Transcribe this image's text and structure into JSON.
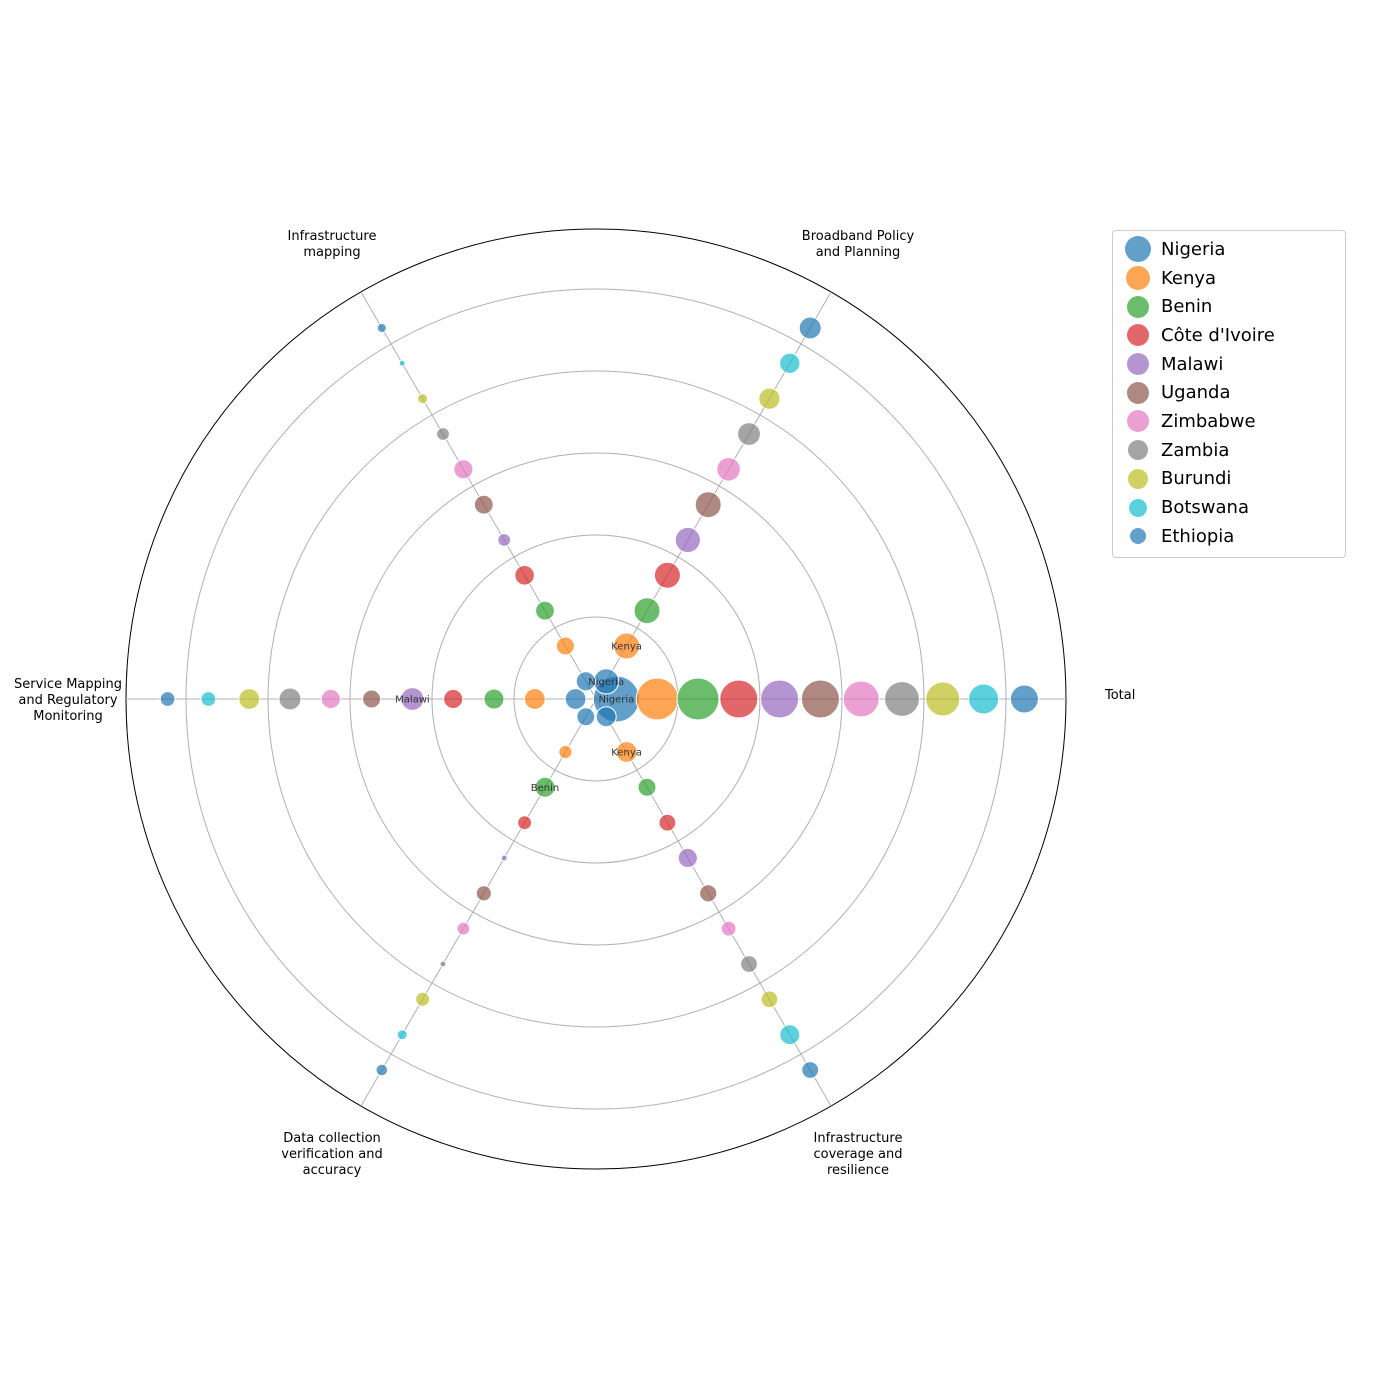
{
  "chart_data": {
    "type": "bubble-radial",
    "title": "",
    "axes": [
      {
        "key": "total",
        "label": [
          "Total"
        ]
      },
      {
        "key": "broadband",
        "label": [
          "Broadband Policy",
          "and Planning"
        ]
      },
      {
        "key": "infra_mapping",
        "label": [
          "Infrastructure",
          "mapping"
        ]
      },
      {
        "key": "service_mapping",
        "label": [
          "Service Mapping",
          "and Regulatory",
          "Monitoring"
        ]
      },
      {
        "key": "data_collection",
        "label": [
          "Data collection",
          "verification and",
          "accuracy"
        ]
      },
      {
        "key": "infra_coverage",
        "label": [
          "Infrastructure",
          "coverage and",
          "resilience"
        ]
      }
    ],
    "legend_position": "outside-right",
    "rings": 6,
    "countries": [
      {
        "name": "Nigeria",
        "color": "#1f77b4"
      },
      {
        "name": "Kenya",
        "color": "#ff7f0e"
      },
      {
        "name": "Benin",
        "color": "#2ca02c"
      },
      {
        "name": "Côte d'Ivoire",
        "color": "#d62728"
      },
      {
        "name": "Malawi",
        "color": "#9467bd"
      },
      {
        "name": "Uganda",
        "color": "#8c564b"
      },
      {
        "name": "Zimbabwe",
        "color": "#e377c2"
      },
      {
        "name": "Zambia",
        "color": "#7f7f7f"
      },
      {
        "name": "Burundi",
        "color": "#bcbd22"
      },
      {
        "name": "Botswana",
        "color": "#17becf"
      },
      {
        "name": "Ethiopia",
        "color": "#1f77b4"
      }
    ],
    "series": [
      {
        "axis": "total",
        "points": [
          {
            "country": "Nigeria",
            "rank": 1,
            "size": 1.0,
            "label": "Nigeria"
          },
          {
            "country": "Kenya",
            "rank": 2,
            "size": 0.9
          },
          {
            "country": "Benin",
            "rank": 3,
            "size": 0.9
          },
          {
            "country": "Côte d'Ivoire",
            "rank": 4,
            "size": 0.8
          },
          {
            "country": "Malawi",
            "rank": 5,
            "size": 0.8
          },
          {
            "country": "Uganda",
            "rank": 6,
            "size": 0.8
          },
          {
            "country": "Zimbabwe",
            "rank": 7,
            "size": 0.75
          },
          {
            "country": "Zambia",
            "rank": 8,
            "size": 0.72
          },
          {
            "country": "Burundi",
            "rank": 9,
            "size": 0.7
          },
          {
            "country": "Botswana",
            "rank": 10,
            "size": 0.6
          },
          {
            "country": "Ethiopia",
            "rank": 11,
            "size": 0.55
          }
        ]
      },
      {
        "axis": "broadband",
        "points": [
          {
            "country": "Nigeria",
            "rank": 1,
            "size": 0.48,
            "label": "Nigeria"
          },
          {
            "country": "Kenya",
            "rank": 2,
            "size": 0.5,
            "label": "Kenya"
          },
          {
            "country": "Benin",
            "rank": 3,
            "size": 0.5
          },
          {
            "country": "Côte d'Ivoire",
            "rank": 4,
            "size": 0.5
          },
          {
            "country": "Malawi",
            "rank": 5,
            "size": 0.48
          },
          {
            "country": "Uganda",
            "rank": 6,
            "size": 0.5
          },
          {
            "country": "Zimbabwe",
            "rank": 7,
            "size": 0.44
          },
          {
            "country": "Zambia",
            "rank": 8,
            "size": 0.42
          },
          {
            "country": "Burundi",
            "rank": 9,
            "size": 0.38
          },
          {
            "country": "Botswana",
            "rank": 10,
            "size": 0.36
          },
          {
            "country": "Ethiopia",
            "rank": 11,
            "size": 0.4
          }
        ]
      },
      {
        "axis": "infra_mapping",
        "points": [
          {
            "country": "Nigeria",
            "rank": 1,
            "size": 0.33
          },
          {
            "country": "Kenya",
            "rank": 2,
            "size": 0.3
          },
          {
            "country": "Benin",
            "rank": 3,
            "size": 0.32
          },
          {
            "country": "Côte d'Ivoire",
            "rank": 4,
            "size": 0.34
          },
          {
            "country": "Malawi",
            "rank": 5,
            "size": 0.17
          },
          {
            "country": "Uganda",
            "rank": 6,
            "size": 0.32
          },
          {
            "country": "Zimbabwe",
            "rank": 7,
            "size": 0.33
          },
          {
            "country": "Zambia",
            "rank": 8,
            "size": 0.17
          },
          {
            "country": "Burundi",
            "rank": 9,
            "size": 0.1
          },
          {
            "country": "Botswana",
            "rank": 10,
            "size": 0.0
          },
          {
            "country": "Ethiopia",
            "rank": 11,
            "size": 0.08
          }
        ]
      },
      {
        "axis": "service_mapping",
        "points": [
          {
            "country": "Nigeria",
            "rank": 1,
            "size": 0.37
          },
          {
            "country": "Kenya",
            "rank": 2,
            "size": 0.37
          },
          {
            "country": "Benin",
            "rank": 3,
            "size": 0.35
          },
          {
            "country": "Côte d'Ivoire",
            "rank": 4,
            "size": 0.33
          },
          {
            "country": "Malawi",
            "rank": 5,
            "size": 0.42,
            "label": "Malawi"
          },
          {
            "country": "Uganda",
            "rank": 6,
            "size": 0.3
          },
          {
            "country": "Zimbabwe",
            "rank": 7,
            "size": 0.33
          },
          {
            "country": "Zambia",
            "rank": 8,
            "size": 0.4
          },
          {
            "country": "Burundi",
            "rank": 9,
            "size": 0.37
          },
          {
            "country": "Botswana",
            "rank": 10,
            "size": 0.22
          },
          {
            "country": "Ethiopia",
            "rank": 11,
            "size": 0.22
          }
        ]
      },
      {
        "axis": "data_collection",
        "points": [
          {
            "country": "Nigeria",
            "rank": 1,
            "size": 0.3
          },
          {
            "country": "Kenya",
            "rank": 2,
            "size": 0.18
          },
          {
            "country": "Benin",
            "rank": 3,
            "size": 0.35,
            "label": "Benin"
          },
          {
            "country": "Côte d'Ivoire",
            "rank": 4,
            "size": 0.2
          },
          {
            "country": "Malawi",
            "rank": 5,
            "size": 0.0
          },
          {
            "country": "Uganda",
            "rank": 6,
            "size": 0.23
          },
          {
            "country": "Zimbabwe",
            "rank": 7,
            "size": 0.17
          },
          {
            "country": "Zambia",
            "rank": 8,
            "size": 0.0
          },
          {
            "country": "Burundi",
            "rank": 9,
            "size": 0.2
          },
          {
            "country": "Botswana",
            "rank": 10,
            "size": 0.1
          },
          {
            "country": "Ethiopia",
            "rank": 11,
            "size": 0.14
          }
        ]
      },
      {
        "axis": "infra_coverage",
        "points": [
          {
            "country": "Nigeria",
            "rank": 1,
            "size": 0.35
          },
          {
            "country": "Kenya",
            "rank": 2,
            "size": 0.37,
            "label": "Kenya"
          },
          {
            "country": "Benin",
            "rank": 3,
            "size": 0.3
          },
          {
            "country": "Côte d'Ivoire",
            "rank": 4,
            "size": 0.27
          },
          {
            "country": "Malawi",
            "rank": 5,
            "size": 0.33
          },
          {
            "country": "Uganda",
            "rank": 6,
            "size": 0.28
          },
          {
            "country": "Zimbabwe",
            "rank": 7,
            "size": 0.22
          },
          {
            "country": "Zambia",
            "rank": 8,
            "size": 0.27
          },
          {
            "country": "Burundi",
            "rank": 9,
            "size": 0.27
          },
          {
            "country": "Botswana",
            "rank": 10,
            "size": 0.35
          },
          {
            "country": "Ethiopia",
            "rank": 11,
            "size": 0.27
          }
        ]
      }
    ]
  }
}
